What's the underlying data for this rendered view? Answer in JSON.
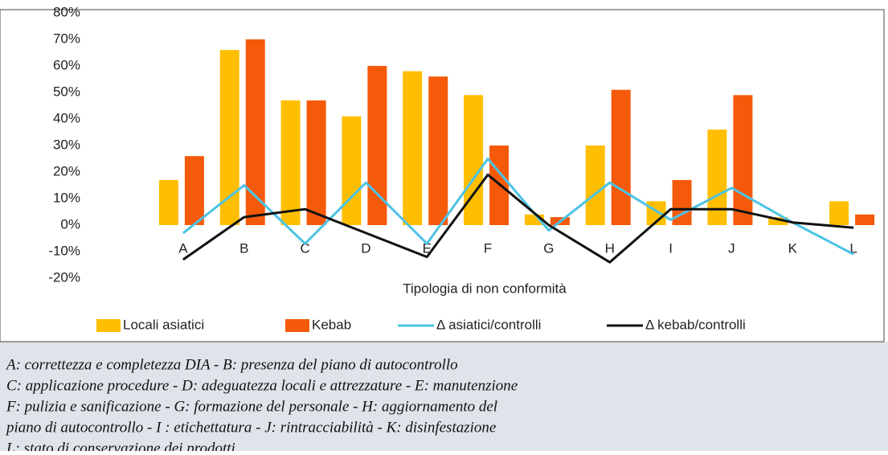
{
  "chart_data": {
    "type": "bar",
    "x_label": "Tipologia di non conformità",
    "categories": [
      "A",
      "B",
      "C",
      "D",
      "E",
      "F",
      "G",
      "H",
      "I",
      "J",
      "K",
      "L"
    ],
    "series": [
      {
        "name": "Locali asiatici",
        "type": "bar",
        "color": "#ffbf00",
        "values": [
          17,
          66,
          47,
          41,
          58,
          49,
          4,
          30,
          9,
          36,
          3,
          9
        ]
      },
      {
        "name": "Kebab",
        "type": "bar",
        "color": "#f55a0a",
        "values": [
          26,
          70,
          47,
          60,
          56,
          30,
          3,
          51,
          17,
          49,
          0,
          4
        ]
      },
      {
        "name": "Δ asiatici/controlli",
        "type": "line",
        "color": "#4cc3e6",
        "values": [
          -3,
          15,
          -7,
          16,
          -7,
          25,
          -2,
          16,
          2,
          14,
          1,
          -11
        ]
      },
      {
        "name": "Δ kebab/controlli",
        "type": "line",
        "color": "#111111",
        "values": [
          -13,
          3,
          6,
          -3,
          -12,
          19,
          0,
          -14,
          6,
          6,
          1,
          -1
        ]
      }
    ],
    "ylim": [
      -20,
      80
    ],
    "yticks": [
      {
        "value": -20,
        "label": "-20%"
      },
      {
        "value": -10,
        "label": "-10%"
      },
      {
        "value": 0,
        "label": "0%"
      },
      {
        "value": 10,
        "label": "10%"
      },
      {
        "value": 20,
        "label": "20%"
      },
      {
        "value": 30,
        "label": "30%"
      },
      {
        "value": 40,
        "label": "40%"
      },
      {
        "value": 50,
        "label": "50%"
      },
      {
        "value": 60,
        "label": "60%"
      },
      {
        "value": 70,
        "label": "70%"
      },
      {
        "value": 80,
        "label": "80%"
      }
    ],
    "grid": false,
    "legend": "bottom"
  },
  "caption": {
    "lines": [
      "A: correttezza e completezza DIA  -  B: presenza del piano di autocontrollo",
      "C: applicazione procedure  -  D: adeguatezza locali e attrezzature  -  E: manutenzione",
      "F: pulizia e sanificazione  -  G: formazione del personale  -  H: aggiornamento del",
      "piano di autocontrollo  -  I : etichettatura  -  J: rintracciabilità  -  K: disinfestazione",
      "L: stato di conservazione dei prodotti"
    ]
  }
}
